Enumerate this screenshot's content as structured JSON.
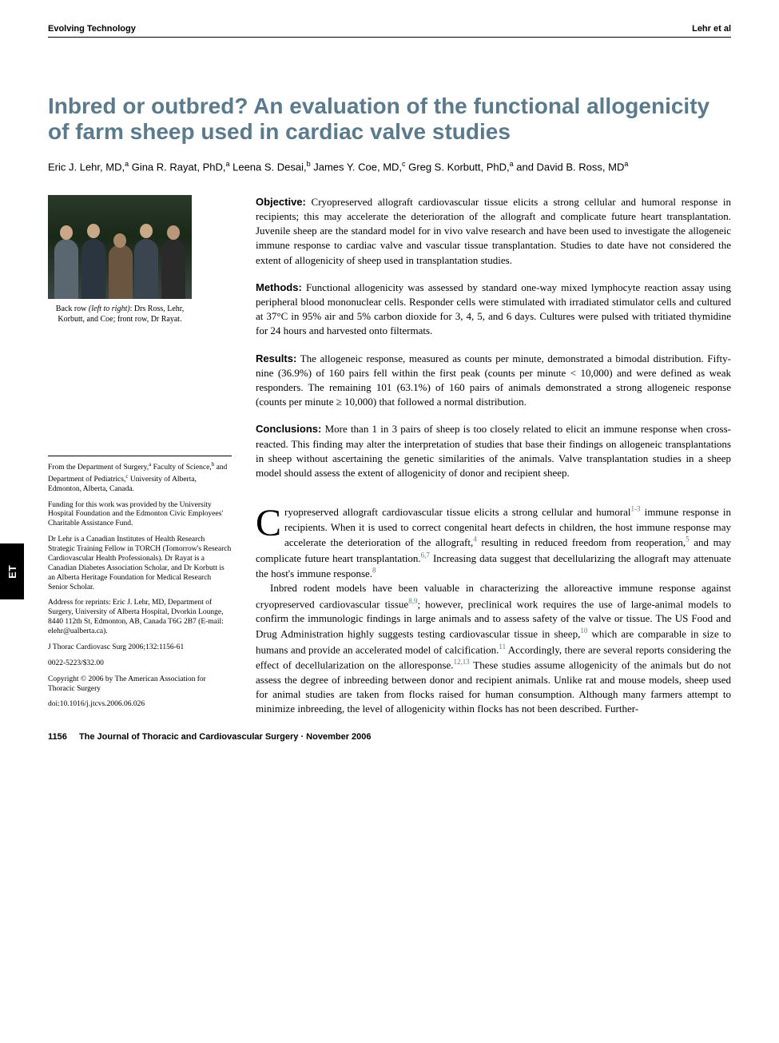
{
  "header": {
    "left": "Evolving Technology",
    "right": "Lehr et al"
  },
  "title": "Inbred or outbred? An evaluation of the functional allogenicity of farm sheep used in cardiac valve studies",
  "authors_html": "Eric J. Lehr, MD,<sup>a</sup> Gina R. Rayat, PhD,<sup>a</sup> Leena S. Desai,<sup>b</sup> James Y. Coe, MD,<sup>c</sup> Greg S. Korbutt, PhD,<sup>a</sup> and David B. Ross, MD<sup>a</sup>",
  "photo_caption_html": "Back row <i>(left to right)</i>: Drs Ross, Lehr, Korbutt, and Coe; front row, Dr Rayat.",
  "side_tab": "ET",
  "abstract": {
    "objective": {
      "label": "Objective:",
      "text": "Cryopreserved allograft cardiovascular tissue elicits a strong cellular and humoral response in recipients; this may accelerate the deterioration of the allograft and complicate future heart transplantation. Juvenile sheep are the standard model for in vivo valve research and have been used to investigate the allogeneic immune response to cardiac valve and vascular tissue transplantation. Studies to date have not considered the extent of allogenicity of sheep used in transplantation studies."
    },
    "methods": {
      "label": "Methods:",
      "text": "Functional allogenicity was assessed by standard one-way mixed lymphocyte reaction assay using peripheral blood mononuclear cells. Responder cells were stimulated with irradiated stimulator cells and cultured at 37°C in 95% air and 5% carbon dioxide for 3, 4, 5, and 6 days. Cultures were pulsed with tritiated thymidine for 24 hours and harvested onto filtermats."
    },
    "results": {
      "label": "Results:",
      "text": "The allogeneic response, measured as counts per minute, demonstrated a bimodal distribution. Fifty-nine (36.9%) of 160 pairs fell within the first peak (counts per minute < 10,000) and were defined as weak responders. The remaining 101 (63.1%) of 160 pairs of animals demonstrated a strong allogeneic response (counts per minute ≥ 10,000) that followed a normal distribution."
    },
    "conclusions": {
      "label": "Conclusions:",
      "text": "More than 1 in 3 pairs of sheep is too closely related to elicit an immune response when cross-reacted. This finding may alter the interpretation of studies that base their findings on allogeneic transplantations in sheep without ascertaining the genetic similarities of the animals. Valve transplantation studies in a sheep model should assess the extent of allogenicity of donor and recipient sheep."
    }
  },
  "affiliations": {
    "from_html": "From the Department of Surgery,<sup>a</sup> Faculty of Science,<sup>b</sup> and Department of Pediatrics,<sup>c</sup> University of Alberta, Edmonton, Alberta, Canada.",
    "funding": "Funding for this work was provided by the University Hospital Foundation and the Edmonton Civic Employees' Charitable Assistance Fund.",
    "bio": "Dr Lehr is a Canadian Institutes of Health Research Strategic Training Fellow in TORCH (Tomorrow's Research Cardiovascular Health Professionals). Dr Rayat is a Canadian Diabetes Association Scholar, and Dr Korbutt is an Alberta Heritage Foundation for Medical Research Senior Scholar.",
    "reprints": "Address for reprints: Eric J. Lehr, MD, Department of Surgery, University of Alberta Hospital, Dvorkin Lounge, 8440 112th St, Edmonton, AB, Canada T6G 2B7 (E-mail: elehr@ualberta.ca).",
    "citation": "J Thorac Cardiovasc Surg 2006;132:1156-61",
    "issn": "0022-5223/$32.00",
    "copyright": "Copyright © 2006 by The American Association for Thoracic Surgery",
    "doi": "doi:10.1016/j.jtcvs.2006.06.026"
  },
  "body": {
    "p1_html": "ryopreserved allograft cardiovascular tissue elicits a strong cellular and humoral<sup>1-3</sup> immune response in recipients. When it is used to correct congenital heart defects in children, the host immune response may accelerate the deterioration of the allograft,<sup>4</sup> resulting in reduced freedom from reoperation,<sup>5</sup> and may complicate future heart transplantation.<sup>6,7</sup> Increasing data suggest that decellularizing the allograft may attenuate the host's immune response.<sup>8</sup>",
    "p2_html": "Inbred rodent models have been valuable in characterizing the alloreactive immune response against cryopreserved cardiovascular tissue<sup>8,9</sup>; however, preclinical work requires the use of large-animal models to confirm the immunologic findings in large animals and to assess safety of the valve or tissue. The US Food and Drug Administration highly suggests testing cardiovascular tissue in sheep,<sup>10</sup> which are comparable in size to humans and provide an accelerated model of calcification.<sup>11</sup> Accordingly, there are several reports considering the effect of decellularization on the alloresponse.<sup>12,13</sup> These studies assume allogenicity of the animals but do not assess the degree of inbreeding between donor and recipient animals. Unlike rat and mouse models, sheep used for animal studies are taken from flocks raised for human consumption. Although many farmers attempt to minimize inbreeding, the level of allogenicity within flocks has not been described. Further-"
  },
  "footer": {
    "page_number": "1156",
    "journal": "The Journal of Thoracic and Cardiovascular Surgery · November 2006"
  },
  "colors": {
    "title_color": "#5b7a8c",
    "ref_color": "#5b7a8c",
    "text_color": "#000000",
    "background": "#ffffff"
  }
}
